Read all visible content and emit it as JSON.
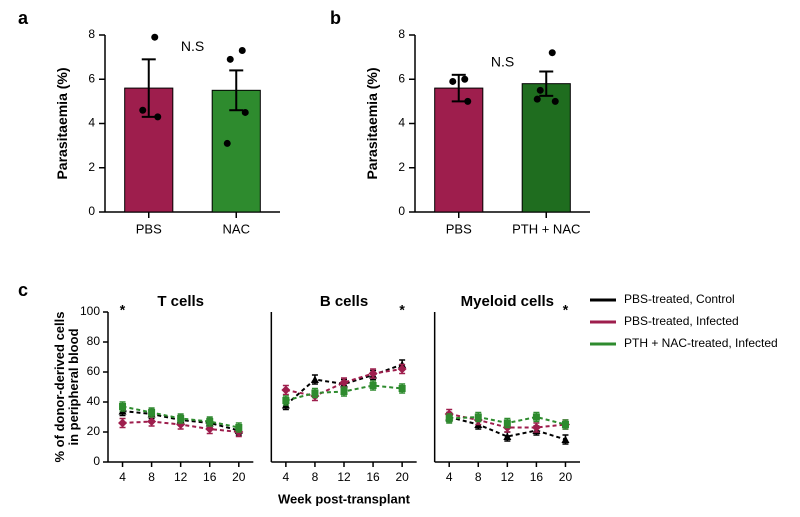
{
  "panel_a": {
    "letter": "a",
    "y_title": "Parasitaemia (%)",
    "ylim": [
      0,
      8
    ],
    "yticks": [
      0,
      2,
      4,
      6,
      8
    ],
    "categories": [
      "PBS",
      "NAC"
    ],
    "bars": [
      {
        "value": 5.6,
        "sem": 1.3,
        "color": "#9e1e4d",
        "points": [
          7.9,
          4.6,
          4.3
        ]
      },
      {
        "value": 5.5,
        "sem": 0.9,
        "color": "#2e8b2e",
        "points": [
          7.3,
          6.9,
          4.5,
          3.1
        ]
      }
    ],
    "bar_colors": [
      "#9e1e4d",
      "#2e8b2e"
    ],
    "significance": "N.S",
    "bar_width": 0.55
  },
  "panel_b": {
    "letter": "b",
    "y_title": "Parasitaemia (%)",
    "ylim": [
      0,
      8
    ],
    "yticks": [
      0,
      2,
      4,
      6,
      8
    ],
    "categories": [
      "PBS",
      "PTH + NAC"
    ],
    "bars": [
      {
        "value": 5.6,
        "sem": 0.6,
        "color": "#9e1e4d",
        "points": [
          6.0,
          5.9,
          5.0
        ]
      },
      {
        "value": 5.8,
        "sem": 0.55,
        "color": "#1f6d1f",
        "points": [
          7.2,
          5.5,
          5.0,
          5.1
        ]
      }
    ],
    "bar_colors": [
      "#9e1e4d",
      "#1f6d1f"
    ],
    "significance": "N.S",
    "bar_width": 0.55
  },
  "panel_c": {
    "letter": "c",
    "y_title": "% of donor-derived cells\nin peripheral blood",
    "x_title": "Week post-transplant",
    "xlim": [
      2,
      22
    ],
    "xticks": [
      4,
      8,
      12,
      16,
      20
    ],
    "ylim": [
      0,
      100
    ],
    "yticks": [
      0,
      20,
      40,
      60,
      80,
      100
    ],
    "subplots": [
      {
        "title": "T cells",
        "sig": {
          "x": 4,
          "label": "*"
        },
        "series": [
          {
            "key": "pbs_ctrl",
            "y": [
              34,
              32,
              28,
              26,
              21
            ]
          },
          {
            "key": "pbs_inf",
            "y": [
              26,
              27,
              25,
              22,
              20
            ]
          },
          {
            "key": "pth_nac_inf",
            "y": [
              37,
              33,
              29,
              27,
              23
            ]
          }
        ]
      },
      {
        "title": "B cells",
        "sig": {
          "x": 20,
          "label": "*"
        },
        "series": [
          {
            "key": "pbs_ctrl",
            "y": [
              38,
              55,
              52,
              58,
              65
            ]
          },
          {
            "key": "pbs_inf",
            "y": [
              48,
              44,
              53,
              59,
              62
            ]
          },
          {
            "key": "pth_nac_inf",
            "y": [
              41,
              46,
              47,
              51,
              49
            ]
          }
        ]
      },
      {
        "title": "Myeloid cells",
        "sig": {
          "x": 20,
          "label": "*"
        },
        "series": [
          {
            "key": "pbs_ctrl",
            "y": [
              30,
              25,
              17,
              21,
              15
            ]
          },
          {
            "key": "pbs_inf",
            "y": [
              32,
              28,
              23,
              23,
              25
            ]
          },
          {
            "key": "pth_nac_inf",
            "y": [
              29,
              30,
              26,
              30,
              25
            ]
          }
        ]
      }
    ],
    "x_vals": [
      4,
      8,
      12,
      16,
      20
    ],
    "legend": [
      {
        "key": "pbs_ctrl",
        "label": "PBS-treated, Control",
        "color": "#000000",
        "marker": "triangle"
      },
      {
        "key": "pbs_inf",
        "label": "PBS-treated, Infected",
        "color": "#9e1e4d",
        "marker": "diamond"
      },
      {
        "key": "pth_nac_inf",
        "label": "PTH + NAC-treated, Infected",
        "color": "#2e8b2e",
        "marker": "square"
      }
    ],
    "sem": 3
  },
  "style": {
    "background": "#ffffff",
    "axis_width": 1.5,
    "tick_len": 5,
    "font_axis_title": 14,
    "font_tick": 12
  }
}
